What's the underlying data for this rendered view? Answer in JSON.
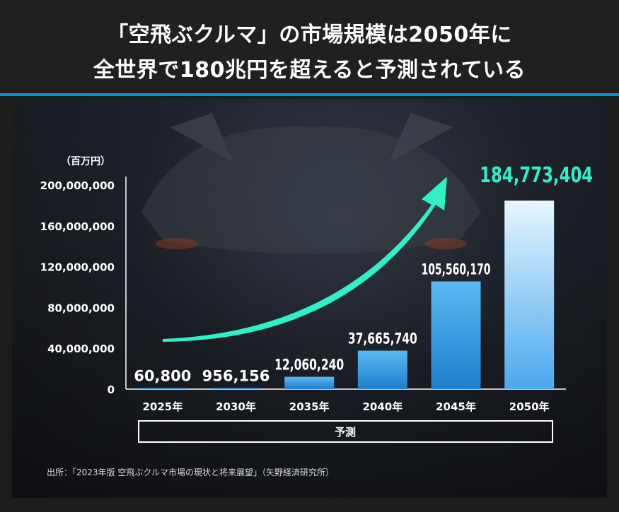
{
  "header": {
    "title_line1": "「空飛ぶクルマ」の市場規模は2050年に",
    "title_line2": "全世界で180兆円を超えると予測されている"
  },
  "chart_data": {
    "type": "bar",
    "unit_label": "（百万円）",
    "categories": [
      "2025年",
      "2030年",
      "2035年",
      "2040年",
      "2045年",
      "2050年"
    ],
    "values": [
      60800,
      956156,
      12060240,
      37665740,
      105560170,
      184773404
    ],
    "value_labels": [
      "60,800",
      "956,156",
      "12,060,240",
      "37,665,740",
      "105,560,170",
      "184,773,404"
    ],
    "y_ticks": [
      0,
      40000000,
      80000000,
      120000000,
      160000000,
      200000000
    ],
    "y_tick_labels": [
      "0",
      "40,000,000",
      "80,000,000",
      "120,000,000",
      "160,000,000",
      "200,000,000"
    ],
    "ylim": [
      0,
      200000000
    ],
    "forecast_label": "予測",
    "bar_color": "#2e8fdc",
    "highlight_color": "#2ff0c8"
  },
  "footer": {
    "source": "出所：「2023年版 空飛ぶクルマ市場の現状と将来展望」（矢野経済研究所）"
  }
}
